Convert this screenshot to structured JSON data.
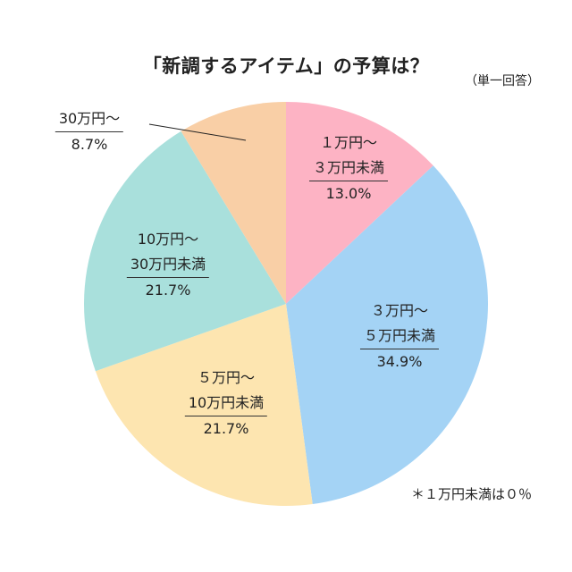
{
  "chart_data": {
    "type": "pie",
    "title": "「新調するアイテム」の予算は？",
    "subtitle": "（単一回答）",
    "start": "top",
    "direction": "clockwise",
    "slices": [
      {
        "label_line1": "１万円～",
        "label_line2": "３万円未満",
        "value": 13.0,
        "value_label": "13.0%",
        "color": "#FDB3C4"
      },
      {
        "label_line1": "３万円～",
        "label_line2": "５万円未満",
        "value": 34.9,
        "value_label": "34.9%",
        "color": "#A4D3F5"
      },
      {
        "label_line1": "５万円～",
        "label_line2": "10万円未満",
        "value": 21.7,
        "value_label": "21.7%",
        "color": "#FDE5B0"
      },
      {
        "label_line1": "10万円～",
        "label_line2": "30万円未満",
        "value": 21.7,
        "value_label": "21.7%",
        "color": "#A9E0DC"
      },
      {
        "label_line1": "30万円～",
        "label_line2": "",
        "value": 8.7,
        "value_label": "8.7%",
        "color": "#F9CFA6"
      }
    ],
    "note": "＊１万円未満は０％"
  }
}
